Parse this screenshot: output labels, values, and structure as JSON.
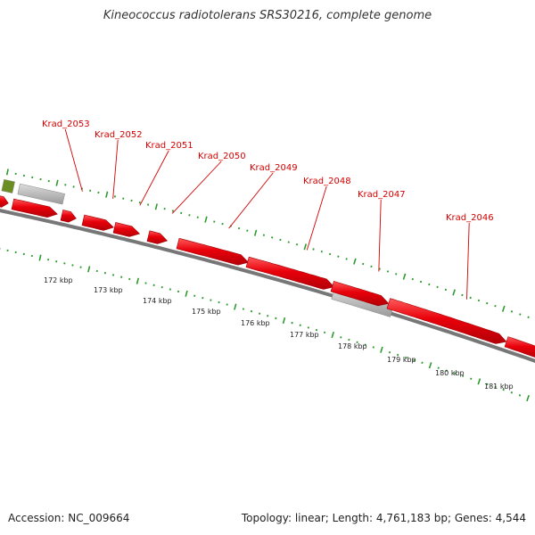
{
  "title": "Kineococcus radiotolerans SRS30216, complete genome",
  "footer": {
    "accession": "Accession: NC_009664",
    "summary": "Topology: linear; Length: 4,761,183 bp; Genes: 4,544"
  },
  "colors": {
    "gene": "#e8000a",
    "gene_light": "#ff5a5a",
    "pseudo": "#b8b8b8",
    "green_feature": "#6b8e23",
    "tick": "#2e9b2e",
    "backbone": "#777777",
    "label": "#d40000"
  },
  "scale_labels": [
    "172 kbp",
    "173 kbp",
    "174 kbp",
    "175 kbp",
    "176 kbp",
    "177 kbp",
    "178 kbp",
    "179 kbp",
    "180 kbp",
    "181 kbp"
  ],
  "gene_labels": [
    "Krad_2053",
    "Krad_2052",
    "Krad_2051",
    "Krad_2050",
    "Krad_2049",
    "Krad_2048",
    "Krad_2047",
    "Krad_2046"
  ]
}
